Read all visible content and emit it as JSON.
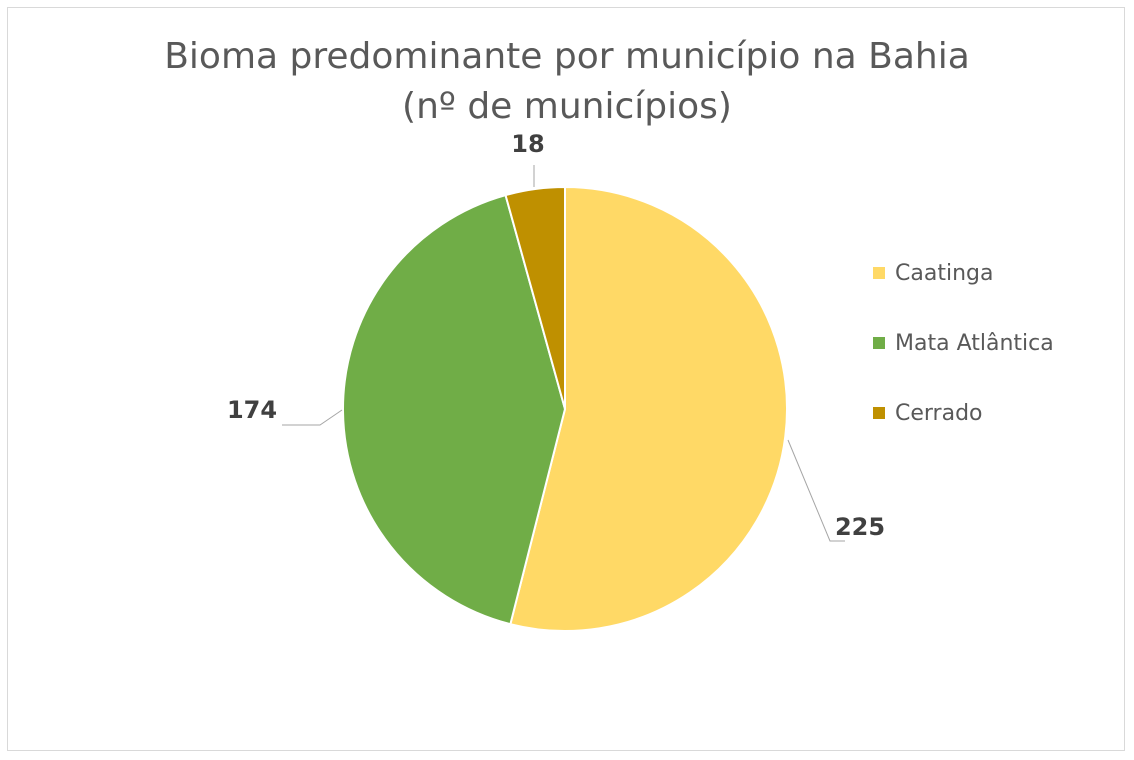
{
  "chart_data": {
    "type": "pie",
    "title": [
      "Bioma predominante por município na Bahia",
      "(nº de municípios)"
    ],
    "categories": [
      "Caatinga",
      "Mata Atlântica",
      "Cerrado"
    ],
    "values": [
      225,
      174,
      18
    ],
    "colors": [
      "#FFD966",
      "#70AD47",
      "#BF9000"
    ],
    "legend_position": "right",
    "data_labels": [
      "225",
      "174",
      "18"
    ]
  }
}
